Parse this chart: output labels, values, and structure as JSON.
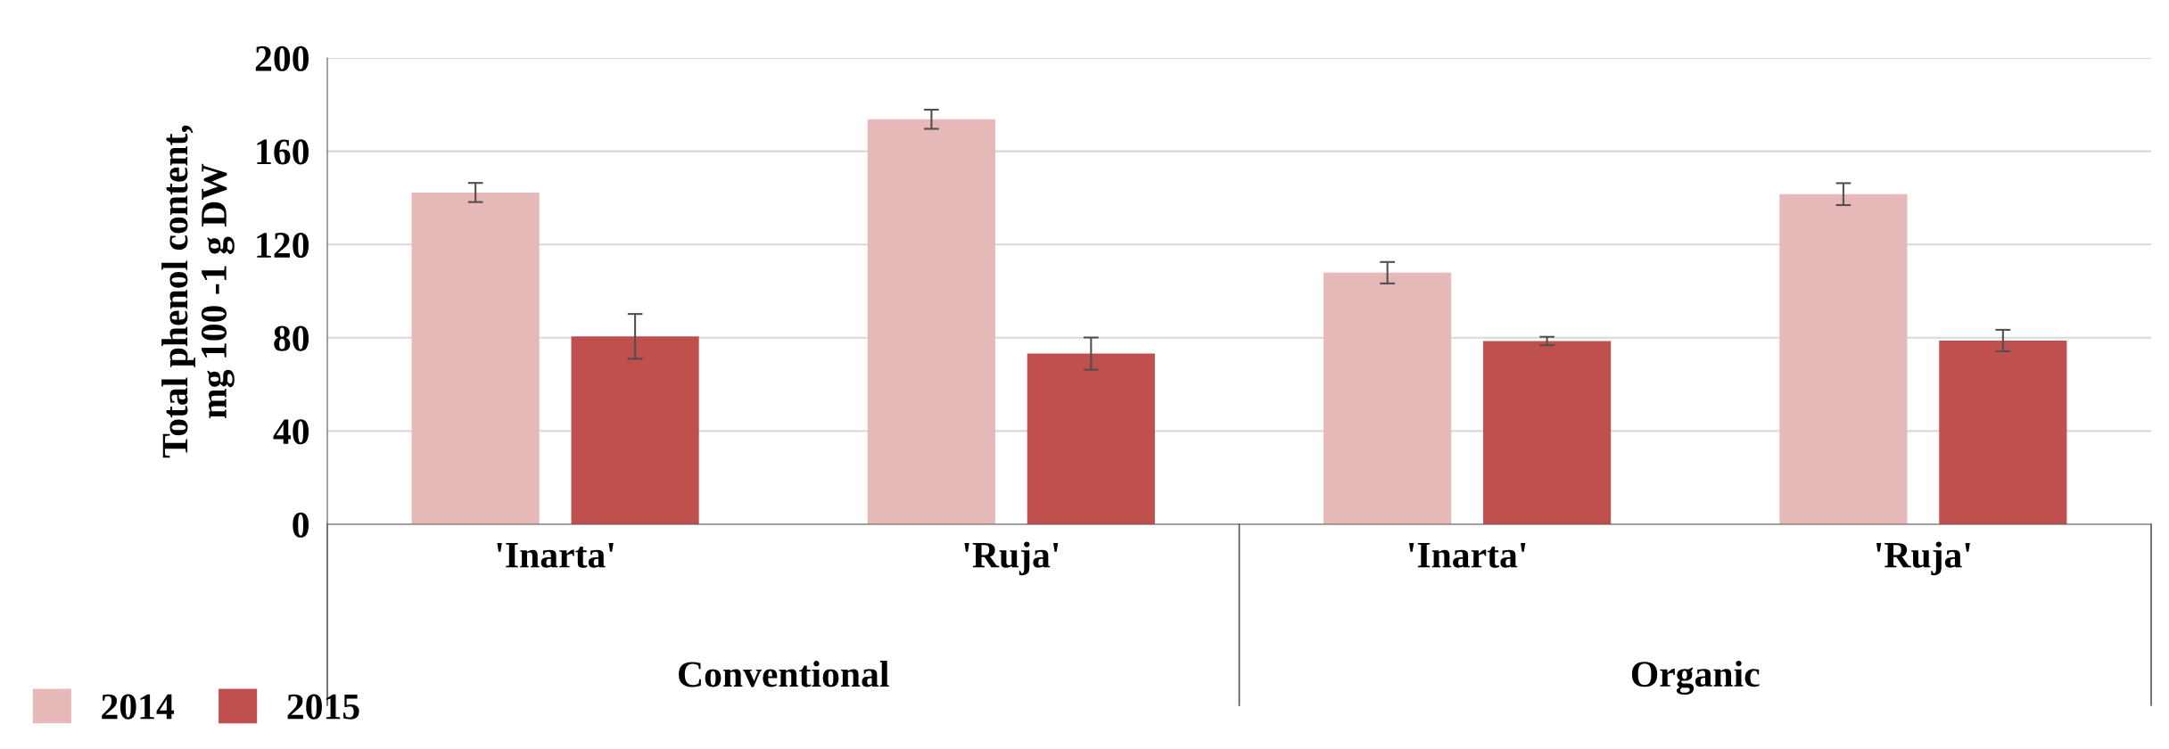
{
  "chart_data": {
    "type": "bar",
    "ylabel": "Total phenol content,\nmg 100 -1 g DW",
    "categories": [
      "'Inarta'",
      "'Ruja'",
      "'Inarta'",
      "'Ruja'"
    ],
    "annotations": [
      "Conventional",
      "Organic"
    ],
    "series": [
      {
        "name": "2014",
        "color": "#e6b8b7",
        "values": [
          142.3,
          173.7,
          107.9,
          141.6
        ],
        "errors": [
          4.1,
          4.1,
          4.6,
          4.7
        ]
      },
      {
        "name": "2015",
        "color": "#c0504d",
        "values": [
          80.6,
          73.2,
          78.6,
          78.8
        ],
        "errors": [
          9.6,
          6.9,
          1.8,
          4.6
        ]
      }
    ],
    "ylim": [
      0,
      200
    ],
    "yticks": [
      0,
      40,
      80,
      120,
      160,
      200
    ],
    "grid": "y",
    "legend": "bottom left"
  }
}
